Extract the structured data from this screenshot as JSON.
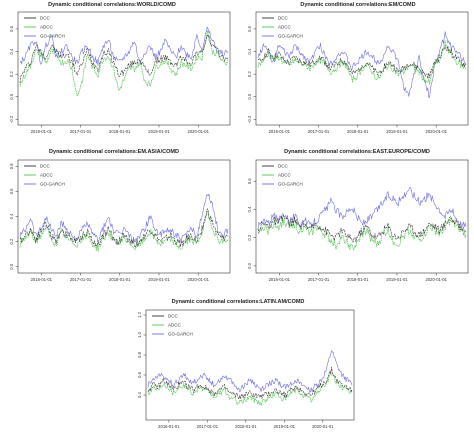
{
  "chart_data": [
    {
      "type": "line",
      "title": "Dynamic conditional correlations:WORLD/COMD",
      "ylim": [
        -0.25,
        0.75
      ],
      "yticks": [
        "-0.2",
        "0.0",
        "0.2",
        "0.4",
        "0.6"
      ],
      "xticks": [
        "2016-01-01",
        "2017-01-01",
        "2018-01-01",
        "2019-01-01",
        "2020-01-01"
      ],
      "legend_position": "top-left",
      "series": [
        {
          "name": "DCC",
          "color": "#303030",
          "values": [
            0.15,
            0.25,
            0.3,
            0.45,
            0.4,
            0.35,
            0.45,
            0.4,
            0.35,
            0.38,
            0.3,
            0.2,
            0.3,
            0.42,
            0.3,
            0.25,
            0.38,
            0.4,
            0.3,
            0.2,
            0.22,
            0.28,
            0.3,
            0.34,
            0.25,
            0.2,
            0.3,
            0.34,
            0.35,
            0.3,
            0.28,
            0.35,
            0.32,
            0.3,
            0.4,
            0.38,
            0.55,
            0.45,
            0.4,
            0.35,
            0.32
          ]
        },
        {
          "name": "ADCC",
          "color": "#55c455",
          "values": [
            0.1,
            0.2,
            0.28,
            0.4,
            0.38,
            0.3,
            0.4,
            0.38,
            0.3,
            0.32,
            0.25,
            0.0,
            0.15,
            0.38,
            0.25,
            0.2,
            0.34,
            0.36,
            0.25,
            0.05,
            0.15,
            0.25,
            0.25,
            0.3,
            0.15,
            0.1,
            0.25,
            0.3,
            0.32,
            0.25,
            0.2,
            0.3,
            0.28,
            0.25,
            0.35,
            0.35,
            0.58,
            0.4,
            0.38,
            0.3,
            0.3
          ]
        },
        {
          "name": "GO-GARCH",
          "color": "#6f6fe6",
          "values": [
            0.3,
            0.35,
            0.45,
            0.5,
            0.3,
            0.45,
            0.55,
            0.35,
            0.4,
            0.45,
            0.35,
            0.3,
            0.4,
            0.45,
            0.35,
            0.3,
            0.45,
            0.5,
            0.35,
            0.3,
            0.35,
            0.4,
            0.5,
            0.3,
            0.4,
            0.45,
            0.35,
            0.4,
            0.5,
            0.4,
            0.35,
            0.45,
            0.38,
            0.35,
            0.55,
            0.42,
            0.6,
            0.5,
            0.4,
            0.38,
            0.4
          ]
        }
      ]
    },
    {
      "type": "line",
      "title": "Dynamic conditional correlations:EM/COMD",
      "ylim": [
        -0.25,
        0.75
      ],
      "yticks": [
        "-0.2",
        "0.0",
        "0.2",
        "0.4",
        "0.6"
      ],
      "xticks": [
        "2016-01-01",
        "2017-01-01",
        "2018-01-01",
        "2019-01-01",
        "2020-01-01"
      ],
      "legend_position": "top-left",
      "series": [
        {
          "name": "DCC",
          "color": "#303030",
          "values": [
            0.3,
            0.35,
            0.4,
            0.35,
            0.38,
            0.32,
            0.3,
            0.35,
            0.32,
            0.3,
            0.28,
            0.32,
            0.35,
            0.3,
            0.25,
            0.28,
            0.32,
            0.3,
            0.2,
            0.22,
            0.28,
            0.3,
            0.25,
            0.2,
            0.25,
            0.3,
            0.28,
            0.22,
            0.25,
            0.3,
            0.28,
            0.25,
            0.2,
            0.18,
            0.3,
            0.35,
            0.45,
            0.4,
            0.35,
            0.3,
            0.28
          ]
        },
        {
          "name": "ADCC",
          "color": "#55c455",
          "values": [
            0.28,
            0.32,
            0.38,
            0.33,
            0.35,
            0.3,
            0.28,
            0.32,
            0.3,
            0.28,
            0.25,
            0.3,
            0.32,
            0.28,
            0.22,
            0.25,
            0.3,
            0.28,
            0.15,
            0.18,
            0.25,
            0.28,
            0.22,
            0.15,
            0.22,
            0.28,
            0.25,
            0.2,
            0.22,
            0.28,
            0.25,
            0.22,
            0.15,
            0.12,
            0.28,
            0.32,
            0.48,
            0.38,
            0.32,
            0.28,
            0.25
          ]
        },
        {
          "name": "GO-GARCH",
          "color": "#6f6fe6",
          "values": [
            0.35,
            0.45,
            0.4,
            0.3,
            0.45,
            0.4,
            0.35,
            0.45,
            0.4,
            0.35,
            0.3,
            0.4,
            0.45,
            0.35,
            0.3,
            0.35,
            0.4,
            0.35,
            0.25,
            0.3,
            0.35,
            0.4,
            0.35,
            0.3,
            0.35,
            0.45,
            0.4,
            0.3,
            0.1,
            0.0,
            0.2,
            0.35,
            0.15,
            0.0,
            0.3,
            0.4,
            0.55,
            0.45,
            0.4,
            0.35,
            0.3
          ]
        }
      ]
    },
    {
      "type": "line",
      "title": "Dynamic conditional correlations:EM.ASIA/COMD",
      "ylim": [
        -0.05,
        0.85
      ],
      "yticks": [
        "0.0",
        "0.2",
        "0.4",
        "0.6",
        "0.8"
      ],
      "xticks": [
        "2016-01-01",
        "2017-01-01",
        "2018-01-01",
        "2019-01-01",
        "2020-01-01"
      ],
      "legend_position": "top-left",
      "series": [
        {
          "name": "DCC",
          "color": "#303030",
          "values": [
            0.2,
            0.25,
            0.3,
            0.22,
            0.28,
            0.35,
            0.25,
            0.2,
            0.3,
            0.25,
            0.22,
            0.2,
            0.25,
            0.28,
            0.2,
            0.18,
            0.25,
            0.3,
            0.22,
            0.2,
            0.25,
            0.22,
            0.18,
            0.2,
            0.25,
            0.3,
            0.25,
            0.2,
            0.22,
            0.25,
            0.2,
            0.18,
            0.22,
            0.25,
            0.2,
            0.3,
            0.45,
            0.35,
            0.25,
            0.22,
            0.25
          ]
        },
        {
          "name": "ADCC",
          "color": "#55c455",
          "values": [
            0.18,
            0.22,
            0.28,
            0.2,
            0.25,
            0.32,
            0.22,
            0.18,
            0.28,
            0.22,
            0.2,
            0.18,
            0.22,
            0.25,
            0.18,
            0.15,
            0.22,
            0.28,
            0.2,
            0.18,
            0.22,
            0.2,
            0.15,
            0.18,
            0.22,
            0.28,
            0.22,
            0.18,
            0.2,
            0.22,
            0.18,
            0.15,
            0.2,
            0.22,
            0.18,
            0.28,
            0.42,
            0.32,
            0.22,
            0.2,
            0.22
          ]
        },
        {
          "name": "GO-GARCH",
          "color": "#6f6fe6",
          "values": [
            0.25,
            0.3,
            0.4,
            0.25,
            0.3,
            0.4,
            0.3,
            0.25,
            0.35,
            0.3,
            0.25,
            0.22,
            0.3,
            0.35,
            0.25,
            0.22,
            0.3,
            0.4,
            0.28,
            0.25,
            0.3,
            0.25,
            0.2,
            0.25,
            0.3,
            0.4,
            0.3,
            0.25,
            0.28,
            0.3,
            0.25,
            0.22,
            0.25,
            0.3,
            0.25,
            0.4,
            0.6,
            0.5,
            0.3,
            0.25,
            0.3
          ]
        }
      ]
    },
    {
      "type": "line",
      "title": "Dynamic conditional correlations:EAST.EUROPE/COMD",
      "ylim": [
        -0.05,
        0.75
      ],
      "yticks": [
        "0.0",
        "0.2",
        "0.4",
        "0.6"
      ],
      "xticks": [
        "2016-01-01",
        "2017-01-01",
        "2018-01-01",
        "2019-01-01",
        "2020-01-01"
      ],
      "legend_position": "top-left",
      "series": [
        {
          "name": "DCC",
          "color": "#303030",
          "values": [
            0.25,
            0.3,
            0.28,
            0.32,
            0.3,
            0.35,
            0.3,
            0.32,
            0.28,
            0.3,
            0.25,
            0.3,
            0.28,
            0.25,
            0.22,
            0.2,
            0.25,
            0.22,
            0.18,
            0.2,
            0.25,
            0.28,
            0.22,
            0.2,
            0.25,
            0.28,
            0.22,
            0.2,
            0.25,
            0.28,
            0.25,
            0.22,
            0.25,
            0.3,
            0.28,
            0.25,
            0.3,
            0.35,
            0.3,
            0.28,
            0.25
          ]
        },
        {
          "name": "ADCC",
          "color": "#55c455",
          "values": [
            0.22,
            0.28,
            0.25,
            0.3,
            0.28,
            0.32,
            0.28,
            0.3,
            0.25,
            0.28,
            0.22,
            0.28,
            0.25,
            0.22,
            0.18,
            0.15,
            0.2,
            0.18,
            0.12,
            0.15,
            0.22,
            0.25,
            0.18,
            0.15,
            0.22,
            0.25,
            0.18,
            0.15,
            0.22,
            0.25,
            0.22,
            0.18,
            0.22,
            0.28,
            0.25,
            0.22,
            0.28,
            0.32,
            0.28,
            0.25,
            0.22
          ]
        },
        {
          "name": "GO-GARCH",
          "color": "#6f6fe6",
          "values": [
            0.28,
            0.32,
            0.3,
            0.35,
            0.32,
            0.38,
            0.32,
            0.35,
            0.3,
            0.32,
            0.28,
            0.32,
            0.35,
            0.4,
            0.45,
            0.4,
            0.35,
            0.38,
            0.42,
            0.35,
            0.3,
            0.32,
            0.35,
            0.4,
            0.45,
            0.5,
            0.48,
            0.45,
            0.5,
            0.55,
            0.5,
            0.45,
            0.48,
            0.5,
            0.45,
            0.4,
            0.35,
            0.4,
            0.35,
            0.3,
            0.28
          ]
        }
      ]
    },
    {
      "type": "line",
      "title": "Dynamic conditional correlations:LATIN.AM/COMD",
      "ylim": [
        0.15,
        1.25
      ],
      "yticks": [
        "0.4",
        "0.6",
        "0.8",
        "1.0",
        "1.2"
      ],
      "xticks": [
        "2016-01-01",
        "2017-01-01",
        "2018-01-01",
        "2019-01-01",
        "2020-01-01"
      ],
      "legend_position": "top-left",
      "series": [
        {
          "name": "DCC",
          "color": "#303030",
          "values": [
            0.45,
            0.5,
            0.48,
            0.55,
            0.5,
            0.45,
            0.5,
            0.52,
            0.48,
            0.45,
            0.5,
            0.48,
            0.45,
            0.42,
            0.45,
            0.48,
            0.42,
            0.4,
            0.38,
            0.4,
            0.42,
            0.4,
            0.38,
            0.4,
            0.42,
            0.45,
            0.42,
            0.4,
            0.45,
            0.48,
            0.45,
            0.42,
            0.4,
            0.45,
            0.5,
            0.55,
            0.65,
            0.55,
            0.5,
            0.48,
            0.45
          ]
        },
        {
          "name": "ADCC",
          "color": "#55c455",
          "values": [
            0.42,
            0.48,
            0.45,
            0.52,
            0.48,
            0.42,
            0.48,
            0.5,
            0.45,
            0.42,
            0.48,
            0.45,
            0.42,
            0.38,
            0.42,
            0.45,
            0.38,
            0.35,
            0.32,
            0.35,
            0.38,
            0.35,
            0.32,
            0.35,
            0.38,
            0.42,
            0.38,
            0.35,
            0.42,
            0.45,
            0.42,
            0.38,
            0.35,
            0.4,
            0.48,
            0.52,
            0.62,
            0.52,
            0.48,
            0.45,
            0.42
          ]
        },
        {
          "name": "GO-GARCH",
          "color": "#6f6fe6",
          "values": [
            0.5,
            0.55,
            0.6,
            0.58,
            0.55,
            0.5,
            0.55,
            0.6,
            0.55,
            0.52,
            0.58,
            0.6,
            0.55,
            0.5,
            0.55,
            0.6,
            0.55,
            0.5,
            0.45,
            0.5,
            0.55,
            0.5,
            0.45,
            0.48,
            0.52,
            0.55,
            0.5,
            0.48,
            0.52,
            0.55,
            0.5,
            0.48,
            0.45,
            0.5,
            0.55,
            0.65,
            0.85,
            0.7,
            0.6,
            0.55,
            0.5
          ]
        }
      ]
    }
  ]
}
